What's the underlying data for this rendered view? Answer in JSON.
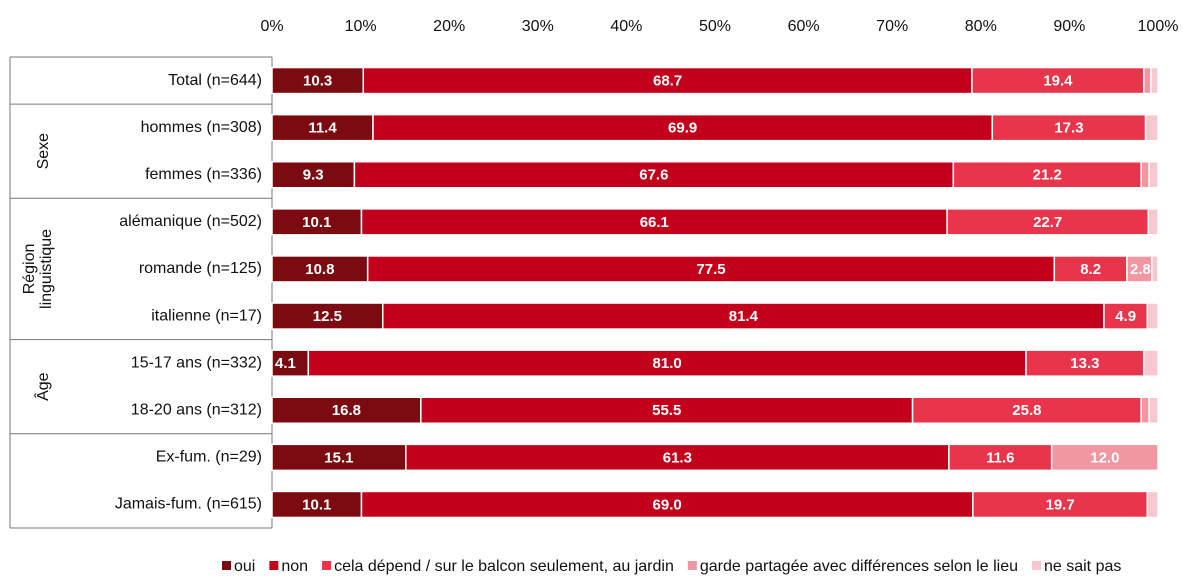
{
  "chart_data": {
    "type": "stacked-bar-horizontal",
    "categories": [
      "Total (n=644)",
      "hommes (n=308)",
      "femmes (n=336)",
      "alémanique (n=502)",
      "romande (n=125)",
      "italienne (n=17)",
      "15-17 ans  (n=332)",
      "18-20 ans  (n=312)",
      "Ex-fum. (n=29)",
      "Jamais-fum. (n=615)"
    ],
    "groups": [
      {
        "name": null,
        "size": 1
      },
      {
        "name": "Sexe",
        "size": 2
      },
      {
        "name": "Région linguistique",
        "size": 3
      },
      {
        "name": "Âge",
        "size": 2
      },
      {
        "name": null,
        "size": 2
      }
    ],
    "xlim": [
      0,
      100
    ],
    "xticks": [
      {
        "value": 0,
        "label": "0%"
      },
      {
        "value": 10,
        "label": "10%"
      },
      {
        "value": 20,
        "label": "20%"
      },
      {
        "value": 30,
        "label": "30%"
      },
      {
        "value": 40,
        "label": "40%"
      },
      {
        "value": 50,
        "label": "50%"
      },
      {
        "value": 60,
        "label": "60%"
      },
      {
        "value": 70,
        "label": "70%"
      },
      {
        "value": 80,
        "label": "80%"
      },
      {
        "value": 90,
        "label": "90%"
      },
      {
        "value": 100,
        "label": "100%"
      }
    ],
    "series": [
      {
        "name": "oui",
        "color": "#7b0b10",
        "values": [
          10.3,
          11.4,
          9.3,
          10.1,
          10.8,
          12.5,
          4.1,
          16.8,
          15.1,
          10.1
        ],
        "value_labels": [
          "10.3",
          "11.4",
          "9.3",
          "10.1",
          "10.8",
          "12.5",
          "4.1",
          "16.8",
          "15.1",
          "10.1"
        ]
      },
      {
        "name": "non",
        "color": "#c3001c",
        "values": [
          68.7,
          69.9,
          67.6,
          66.1,
          77.5,
          81.4,
          81.0,
          55.5,
          61.3,
          69.0
        ],
        "value_labels": [
          "68.7",
          "69.9",
          "67.6",
          "66.1",
          "77.5",
          "81.4",
          "81.0",
          "55.5",
          "61.3",
          "69.0"
        ]
      },
      {
        "name": "cela dépend / sur le balcon seulement, au jardin",
        "color": "#e8354b",
        "values": [
          19.4,
          17.3,
          21.2,
          22.7,
          8.2,
          4.9,
          13.3,
          25.8,
          11.6,
          19.7
        ],
        "value_labels": [
          "19.4",
          "17.3",
          "21.2",
          "22.7",
          "8.2",
          "4.9",
          "13.3",
          "25.8",
          "11.6",
          "19.7"
        ]
      },
      {
        "name": "garde partagée avec différences selon le lieu",
        "color": "#f097a2",
        "values": [
          0.8,
          0,
          0.9,
          0,
          2.8,
          0,
          0,
          0.9,
          12.0,
          0
        ],
        "value_labels": [
          null,
          null,
          null,
          null,
          "2.8",
          null,
          null,
          null,
          "12.0",
          null
        ]
      },
      {
        "name": "ne sait pas",
        "color": "#f8c6cd",
        "values": [
          0.8,
          1.4,
          1.0,
          1.1,
          0.7,
          1.2,
          1.6,
          1.0,
          0,
          1.2
        ],
        "value_labels": [
          null,
          null,
          null,
          null,
          null,
          null,
          null,
          null,
          null,
          null
        ]
      }
    ]
  }
}
